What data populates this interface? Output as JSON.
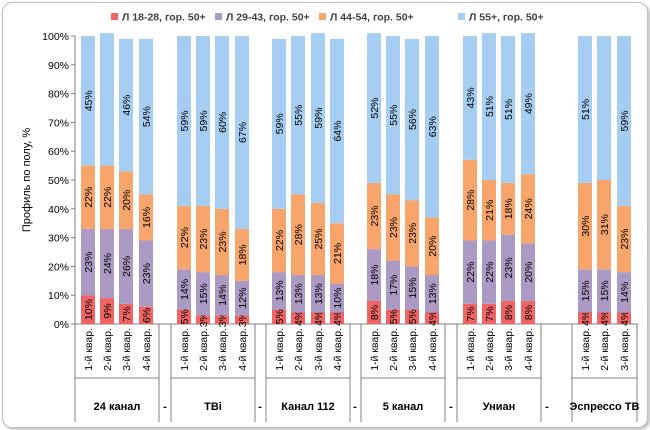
{
  "chart_data": {
    "type": "bar",
    "stacked": true,
    "ylabel": "Профиль по полу, %",
    "ylim": [
      0,
      100
    ],
    "ytick_labels": [
      "0%",
      "10%",
      "20%",
      "30%",
      "40%",
      "50%",
      "60%",
      "70%",
      "80%",
      "90%",
      "100%"
    ],
    "grid": false,
    "legend_position": "top",
    "quarters": [
      "1-й квар.",
      "2-й квар.",
      "3-й квар.",
      "4-й квар."
    ],
    "separator": "-",
    "groups": [
      {
        "name": "24 канал",
        "quarters": 4
      },
      {
        "name": "TBi",
        "quarters": 4
      },
      {
        "name": "Канал 112",
        "quarters": 4
      },
      {
        "name": "5 канал",
        "quarters": 4
      },
      {
        "name": "Униан",
        "quarters": 4
      },
      {
        "name": "Эспрессо ТВ",
        "quarters": 3
      }
    ],
    "series": [
      {
        "name": "Л 18-28, гор. 50+",
        "color": "#f06464",
        "values": [
          10,
          9,
          7,
          6,
          5,
          3,
          3,
          3,
          5,
          4,
          4,
          4,
          8,
          5,
          5,
          4,
          7,
          7,
          8,
          8,
          4,
          4,
          4
        ],
        "labels": [
          "10%",
          "9%",
          "7%",
          "6%",
          "5%",
          "3%",
          "3%",
          "3%",
          "5%",
          "4%",
          "4%",
          "4%",
          "8%",
          "5%",
          "5%",
          "4%",
          "7%",
          "7%",
          "8%",
          "8%",
          "4%",
          "4%",
          "4%"
        ]
      },
      {
        "name": "Л 29-43, гор. 50+",
        "color": "#ab9ac3",
        "values": [
          23,
          24,
          26,
          23,
          14,
          15,
          14,
          12,
          13,
          13,
          13,
          10,
          18,
          17,
          15,
          13,
          22,
          22,
          23,
          20,
          15,
          15,
          14
        ],
        "labels": [
          "23%",
          "24%",
          "26%",
          "23%",
          "14%",
          "15%",
          "14%",
          "12%",
          "13%",
          "13%",
          "13%",
          "10%",
          "18%",
          "17%",
          "15%",
          "13%",
          "22%",
          "22%",
          "23%",
          "20%",
          "15%",
          "15%",
          "14%"
        ]
      },
      {
        "name": "Л 44-54, гор. 50+",
        "color": "#f8a56c",
        "values": [
          22,
          22,
          20,
          16,
          22,
          23,
          23,
          18,
          22,
          28,
          25,
          21,
          23,
          23,
          23,
          20,
          28,
          21,
          18,
          24,
          30,
          31,
          23
        ],
        "labels": [
          "22%",
          "22%",
          "20%",
          "16%",
          "22%",
          "23%",
          "23%",
          "18%",
          "22%",
          "28%",
          "25%",
          "21%",
          "23%",
          "23%",
          "23%",
          "20%",
          "28%",
          "21%",
          "18%",
          "24%",
          "30%",
          "31%",
          "23%"
        ]
      },
      {
        "name": "Л 55+, гор. 50+",
        "color": "#a6cdf2",
        "values": [
          45,
          46,
          46,
          54,
          59,
          59,
          60,
          67,
          59,
          55,
          59,
          64,
          52,
          55,
          56,
          63,
          43,
          51,
          51,
          49,
          51,
          50,
          59
        ],
        "labels": [
          "45%",
          "",
          "46%",
          "54%",
          "59%",
          "59%",
          "60%",
          "67%",
          "59%",
          "55%",
          "59%",
          "64%",
          "52%",
          "55%",
          "56%",
          "63%",
          "43%",
          "51%",
          "51%",
          "49%",
          "51%",
          "",
          "59%"
        ]
      }
    ]
  }
}
